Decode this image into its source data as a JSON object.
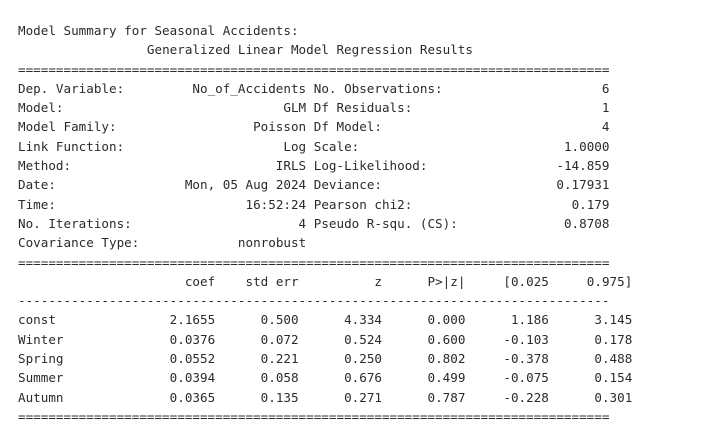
{
  "heading": "Model Summary for Seasonal Accidents:",
  "title": "Generalized Linear Model Regression Results",
  "info_left": [
    {
      "label": "Dep. Variable:",
      "value": "No_of_Accidents"
    },
    {
      "label": "Model:",
      "value": "GLM"
    },
    {
      "label": "Model Family:",
      "value": "Poisson"
    },
    {
      "label": "Link Function:",
      "value": "Log"
    },
    {
      "label": "Method:",
      "value": "IRLS"
    },
    {
      "label": "Date:",
      "value": "Mon, 05 Aug 2024"
    },
    {
      "label": "Time:",
      "value": "16:52:24"
    },
    {
      "label": "No. Iterations:",
      "value": "4"
    },
    {
      "label": "Covariance Type:",
      "value": "nonrobust"
    }
  ],
  "info_right": [
    {
      "label": "No. Observations:",
      "value": "6"
    },
    {
      "label": "Df Residuals:",
      "value": "1"
    },
    {
      "label": "Df Model:",
      "value": "4"
    },
    {
      "label": "Scale:",
      "value": "1.0000"
    },
    {
      "label": "Log-Likelihood:",
      "value": "-14.859"
    },
    {
      "label": "Deviance:",
      "value": "0.17931"
    },
    {
      "label": "Pearson chi2:",
      "value": "0.179"
    },
    {
      "label": "Pseudo R-squ. (CS):",
      "value": "0.8708"
    }
  ],
  "coef_headers": [
    "coef",
    "std err",
    "z",
    "P>|z|",
    "[0.025",
    "0.975]"
  ],
  "coef_rows": [
    {
      "name": "const",
      "values": [
        "2.1655",
        "0.500",
        "4.334",
        "0.000",
        "1.186",
        "3.145"
      ]
    },
    {
      "name": "Winter",
      "values": [
        "0.0376",
        "0.072",
        "0.524",
        "0.600",
        "-0.103",
        "0.178"
      ]
    },
    {
      "name": "Spring",
      "values": [
        "0.0552",
        "0.221",
        "0.250",
        "0.802",
        "-0.378",
        "0.488"
      ]
    },
    {
      "name": "Summer",
      "values": [
        "0.0394",
        "0.058",
        "0.676",
        "0.499",
        "-0.075",
        "0.154"
      ]
    },
    {
      "name": "Autumn",
      "values": [
        "0.0365",
        "0.135",
        "0.271",
        "0.787",
        "-0.228",
        "0.301"
      ]
    }
  ]
}
